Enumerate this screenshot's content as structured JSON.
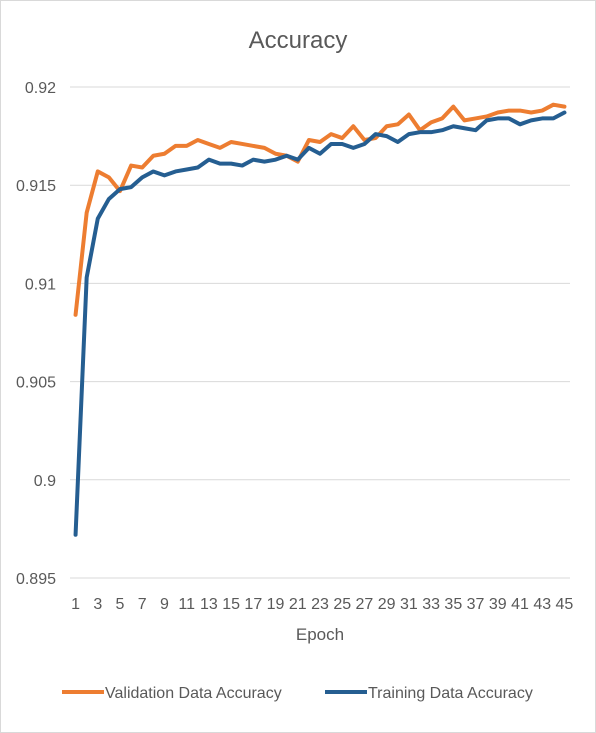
{
  "chart_data": {
    "type": "line",
    "title": "Accuracy",
    "xlabel": "Epoch",
    "ylabel": "",
    "ylim": [
      0.895,
      0.92
    ],
    "yticks": [
      "0.895",
      "0.9",
      "0.905",
      "0.91",
      "0.915",
      "0.92"
    ],
    "ytick_values": [
      0.895,
      0.9,
      0.905,
      0.91,
      0.915,
      0.92
    ],
    "xticks": [
      1,
      3,
      5,
      7,
      9,
      11,
      13,
      15,
      17,
      19,
      21,
      23,
      25,
      27,
      29,
      31,
      33,
      35,
      37,
      39,
      41,
      43,
      45
    ],
    "x": [
      1,
      2,
      3,
      4,
      5,
      6,
      7,
      8,
      9,
      10,
      11,
      12,
      13,
      14,
      15,
      16,
      17,
      18,
      19,
      20,
      21,
      22,
      23,
      24,
      25,
      26,
      27,
      28,
      29,
      30,
      31,
      32,
      33,
      34,
      35,
      36,
      37,
      38,
      39,
      40,
      41,
      42,
      43,
      44,
      45
    ],
    "grid": "horizontal",
    "legend_position": "bottom",
    "series": [
      {
        "name": "Validation Data Accuracy",
        "color": "#ED7D31",
        "values": [
          0.9084,
          0.9136,
          0.9157,
          0.9154,
          0.9147,
          0.916,
          0.9159,
          0.9165,
          0.9166,
          0.917,
          0.917,
          0.9173,
          0.9171,
          0.9169,
          0.9172,
          0.9171,
          0.917,
          0.9169,
          0.9166,
          0.9165,
          0.9162,
          0.9173,
          0.9172,
          0.9176,
          0.9174,
          0.918,
          0.9173,
          0.9174,
          0.918,
          0.9181,
          0.9186,
          0.9178,
          0.9182,
          0.9184,
          0.919,
          0.9183,
          0.9184,
          0.9185,
          0.9187,
          0.9188,
          0.9188,
          0.9187,
          0.9188,
          0.9191,
          0.919
        ]
      },
      {
        "name": "Training Data Accuracy",
        "color": "#255E91",
        "values": [
          0.8972,
          0.9103,
          0.9133,
          0.9143,
          0.9148,
          0.9149,
          0.9154,
          0.9157,
          0.9155,
          0.9157,
          0.9158,
          0.9159,
          0.9163,
          0.9161,
          0.9161,
          0.916,
          0.9163,
          0.9162,
          0.9163,
          0.9165,
          0.9163,
          0.9169,
          0.9166,
          0.9171,
          0.9171,
          0.9169,
          0.9171,
          0.9176,
          0.9175,
          0.9172,
          0.9176,
          0.9177,
          0.9177,
          0.9178,
          0.918,
          0.9179,
          0.9178,
          0.9183,
          0.9184,
          0.9184,
          0.9181,
          0.9183,
          0.9184,
          0.9184,
          0.9187
        ]
      }
    ]
  }
}
